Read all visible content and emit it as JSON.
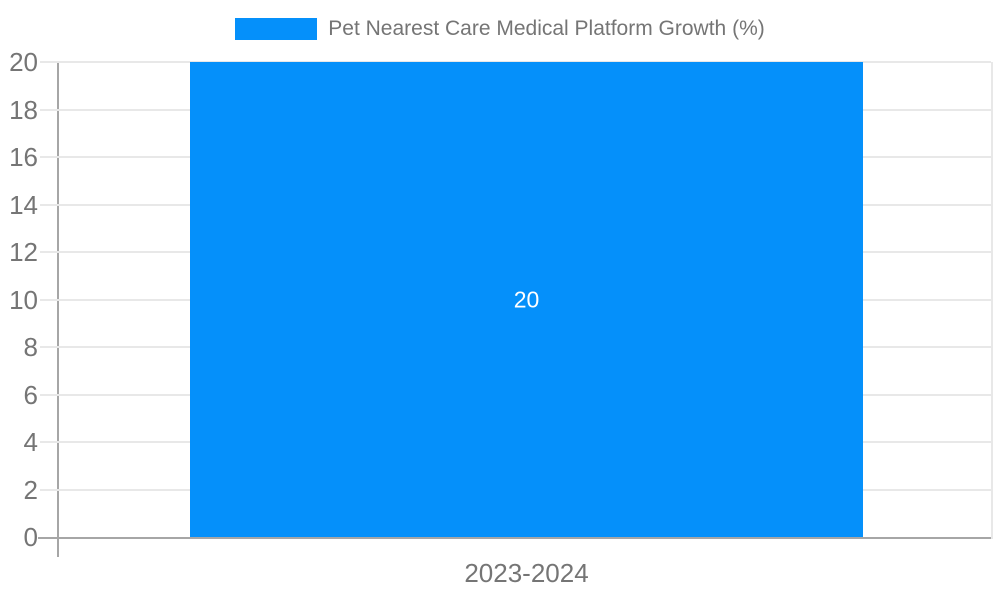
{
  "legend": {
    "position": "top",
    "items": [
      {
        "label": "Pet Nearest Care Medical Platform Growth (%)",
        "swatch_color": "#0590FA"
      }
    ]
  },
  "chart_data": {
    "type": "bar",
    "title": "Pet Nearest Care Medical Platform Growth (%)",
    "categories": [
      "2023-2024"
    ],
    "series": [
      {
        "name": "Pet Nearest Care Medical Platform Growth (%)",
        "values": [
          20
        ]
      }
    ],
    "bar_labels": [
      "20"
    ],
    "xlabel": "",
    "ylabel": "",
    "ylim": [
      0,
      20
    ],
    "yticks": [
      0,
      2,
      4,
      6,
      8,
      10,
      12,
      14,
      16,
      18,
      20
    ],
    "grid": true,
    "legend_position": "top"
  },
  "colors": {
    "bar": "#0590FA",
    "axis": "#A6A6A6",
    "grid": "#E8E8E8",
    "text": "#757575",
    "bar_label": "#FFFFFF",
    "background": "#FFFFFF"
  }
}
